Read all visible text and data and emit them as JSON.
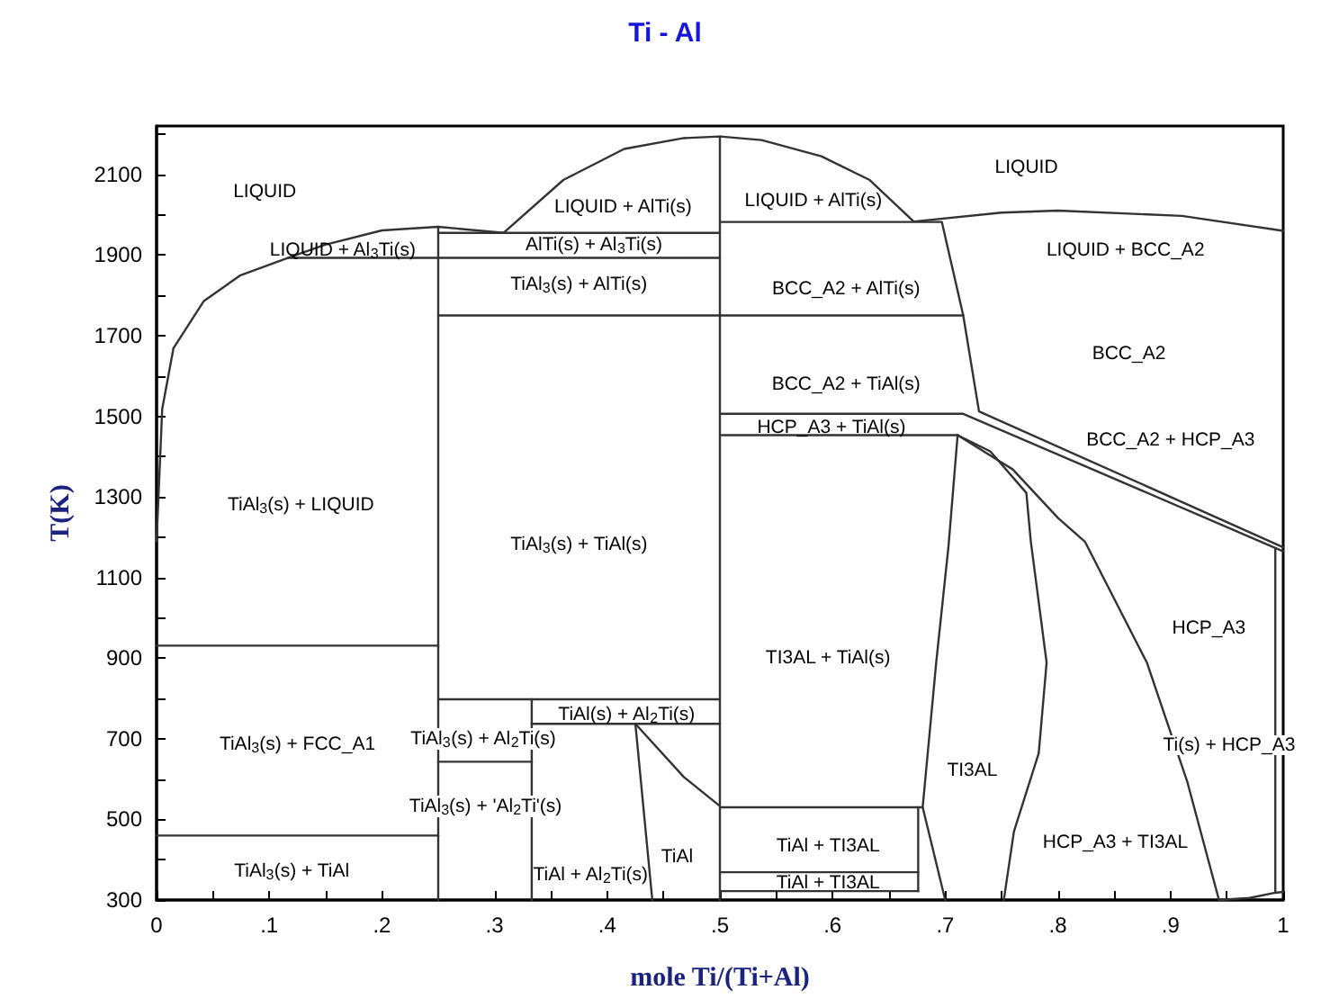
{
  "chart_data": {
    "type": "line",
    "title": "Ti - Al",
    "xlabel": "mole Ti/(Ti+Al)",
    "ylabel": "T(K)",
    "xlim": [
      0,
      1
    ],
    "ylim": [
      300,
      2220
    ],
    "xticks": [
      0,
      {
        "value": 0.05,
        "label": null
      },
      {
        "value": 0.1,
        "label": ".1"
      },
      {
        "value": 0.15,
        "label": null
      },
      {
        "value": 0.2,
        "label": ".2"
      },
      {
        "value": 0.25,
        "label": null
      },
      {
        "value": 0.3,
        "label": ".3"
      },
      {
        "value": 0.35,
        "label": null
      },
      {
        "value": 0.4,
        "label": ".4"
      },
      {
        "value": 0.45,
        "label": null
      },
      {
        "value": 0.5,
        "label": ".5"
      },
      {
        "value": 0.55,
        "label": null
      },
      {
        "value": 0.6,
        "label": ".6"
      },
      {
        "value": 0.65,
        "label": null
      },
      {
        "value": 0.7,
        "label": ".7"
      },
      {
        "value": 0.75,
        "label": null
      },
      {
        "value": 0.8,
        "label": ".8"
      },
      {
        "value": 0.85,
        "label": null
      },
      {
        "value": 0.9,
        "label": ".9"
      },
      {
        "value": 0.95,
        "label": null
      },
      1
    ],
    "yticks": [
      300,
      {
        "value": 400,
        "label": null
      },
      500,
      {
        "value": 600,
        "label": null
      },
      700,
      {
        "value": 800,
        "label": null
      },
      900,
      {
        "value": 1000,
        "label": null
      },
      1100,
      {
        "value": 1200,
        "label": null
      },
      1300,
      {
        "value": 1400,
        "label": null
      },
      1500,
      {
        "value": 1600,
        "label": null
      },
      1700,
      {
        "value": 1800,
        "label": null
      },
      1900,
      {
        "value": 2000,
        "label": null
      },
      2100,
      {
        "value": 2200,
        "label": null
      }
    ],
    "grid": false,
    "marker": "none",
    "line_style": "solid",
    "series": [
      {
        "color": "#333333",
        "x": [
          0,
          0.005,
          0.015,
          0.042,
          0.074,
          0.117,
          0.149,
          0.2,
          0.25,
          0.308,
          0.361,
          0.415,
          0.468,
          0.5,
          0.537,
          0.59,
          0.633,
          0.672,
          0.75,
          0.8,
          0.91,
          1
        ],
        "values": [
          1190,
          1518,
          1669,
          1786,
          1849,
          1893,
          1925,
          1961,
          1970,
          1955,
          2086,
          2163,
          2190,
          2194,
          2185,
          2145,
          2086,
          1983,
          2005,
          2010,
          1997,
          1960
        ]
      },
      {
        "color": "#333333",
        "x": [
          0.117,
          0.5
        ],
        "values": [
          1893,
          1893
        ]
      },
      {
        "color": "#333333",
        "x": [
          0.25,
          0.5
        ],
        "values": [
          1955,
          1955
        ]
      },
      {
        "color": "#333333",
        "x": [
          0.5,
          0.697,
          0.716,
          0.73,
          1
        ],
        "values": [
          1982,
          1982,
          1750,
          1512,
          1175
        ]
      },
      {
        "color": "#333333",
        "x": [
          0.25,
          0.716
        ],
        "values": [
          1750,
          1750
        ]
      },
      {
        "color": "#333333",
        "x": [
          0.5,
          0.716,
          1
        ],
        "values": [
          1506,
          1506,
          1165
        ]
      },
      {
        "color": "#333333",
        "x": [
          0.5,
          0.711
        ],
        "values": [
          1453,
          1453
        ]
      },
      {
        "color": "#333333",
        "x": [
          0.711,
          0.76,
          0.8,
          0.824,
          0.879,
          0.915,
          0.943
        ],
        "values": [
          1453,
          1368,
          1248,
          1189,
          889,
          592,
          300
        ]
      },
      {
        "color": "#333333",
        "x": [
          0.711,
          0.74,
          0.772,
          0.776,
          0.79,
          0.783,
          0.761,
          0.752
        ],
        "values": [
          1453,
          1413,
          1310,
          1189,
          889,
          664,
          470,
          300
        ]
      },
      {
        "color": "#333333",
        "x": [
          0.711,
          0.703,
          0.692,
          0.68,
          0.7
        ],
        "values": [
          1453,
          1180,
          889,
          530,
          300
        ]
      },
      {
        "color": "#333333",
        "x": [
          0.5,
          0.68
        ],
        "values": [
          530,
          530
        ]
      },
      {
        "color": "#333333",
        "x": [
          0.676,
          0.676
        ],
        "values": [
          530,
          322
        ]
      },
      {
        "color": "#333333",
        "x": [
          0.5,
          0.676
        ],
        "values": [
          369,
          369
        ]
      },
      {
        "color": "#333333",
        "x": [
          0.5,
          0.676
        ],
        "values": [
          322,
          322
        ]
      },
      {
        "color": "#333333",
        "x": [
          0.25,
          0.25
        ],
        "values": [
          300,
          1970
        ]
      },
      {
        "color": "#333333",
        "x": [
          0.5,
          0.5
        ],
        "values": [
          300,
          2194
        ]
      },
      {
        "color": "#333333",
        "x": [
          0.333,
          0.333
        ],
        "values": [
          300,
          798
        ]
      },
      {
        "color": "#333333",
        "x": [
          0.25,
          0.5
        ],
        "values": [
          798,
          798
        ]
      },
      {
        "color": "#333333",
        "x": [
          0.333,
          0.5
        ],
        "values": [
          737,
          737
        ]
      },
      {
        "color": "#333333",
        "x": [
          0.25,
          0.333
        ],
        "values": [
          643,
          643
        ]
      },
      {
        "color": "#333333",
        "x": [
          0,
          0.25
        ],
        "values": [
          460,
          460
        ]
      },
      {
        "color": "#333333",
        "x": [
          0,
          0.25
        ],
        "values": [
          931,
          931
        ]
      },
      {
        "color": "#333333",
        "x": [
          0.425,
          0.44
        ],
        "values": [
          737,
          300
        ]
      },
      {
        "color": "#333333",
        "x": [
          0.425,
          0.468,
          0.5
        ],
        "values": [
          737,
          605,
          533
        ]
      },
      {
        "color": "#333333",
        "x": [
          0.993,
          0.993
        ],
        "values": [
          1170,
          318
        ]
      },
      {
        "color": "#333333",
        "x": [
          0.943,
          0.97,
          0.993,
          1
        ],
        "values": [
          300,
          305,
          318,
          320
        ]
      }
    ],
    "annotations": [
      "LIQUID",
      "LIQUID + Al$_{3}$Ti(s)",
      "LIQUID + AlTi(s)",
      "AlTi(s) + Al$_{3}$Ti(s)",
      "TiAl$_{3}$(s) + AlTi(s)",
      "TiAl$_{3}$(s) + LIQUID",
      "TiAl$_{3}$(s) + TiAl(s)",
      "TiAl$_{3}$(s) + FCC_A1",
      "TiAl$_{3}$(s) + TiAl",
      "TiAl$_{3}$(s) + Al$_{2}$Ti(s)",
      "TiAl$_{3}$(s) + 'Al$_{2}$Ti'(s)",
      "TiAl(s) + Al$_{2}$Ti(s)",
      "TiAl + Al$_{2}$Ti(s)",
      "TiAl",
      "LIQUID + AlTi(s)",
      "LIQUID",
      "LIQUID + BCC_A2",
      "BCC_A2 + AlTi(s)",
      "BCC_A2 + TiAl(s)",
      "HCP_A3 + TiAl(s)",
      "BCC_A2",
      "BCC_A2 + HCP_A3",
      "HCP_A3",
      "TI3AL + TiAl(s)",
      "TI3AL",
      "TiAl + TI3AL",
      "TiAl + TI3AL",
      "HCP_A3 + TI3AL",
      "Ti(s) + HCP_A3"
    ]
  }
}
